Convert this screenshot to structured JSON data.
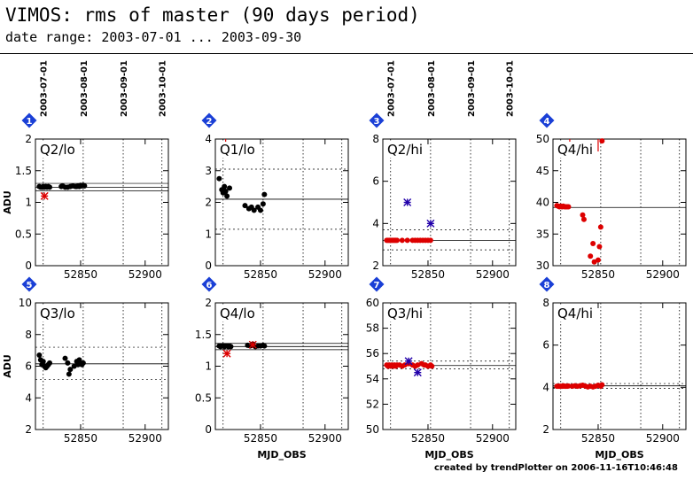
{
  "header": {
    "title": "VIMOS: rms of master (90 days period)",
    "subtitle": "date range: 2003-07-01 ... 2003-09-30"
  },
  "footer": "created by trendPlotter on 2006-11-16T10:46:48",
  "chart_data": {
    "type": "scatter",
    "xlabel": "MJD_OBS",
    "ylabel": "ADU",
    "xlim": [
      52815,
      52918
    ],
    "xticks": [
      52850,
      52900
    ],
    "x_date_ticks": [
      {
        "mjd": 52821,
        "label": "2003-07-01"
      },
      {
        "mjd": 52852,
        "label": "2003-08-01"
      },
      {
        "mjd": 52883,
        "label": "2003-09-01"
      },
      {
        "mjd": 52913,
        "label": "2003-10-01"
      }
    ],
    "colors": {
      "ok": "#000000",
      "bad": "#dd0000",
      "ext": "#2200aa",
      "badge": "#1a3fd6"
    },
    "panels": [
      {
        "badge": "1",
        "label": "Q2/lo",
        "ylim": [
          0,
          2
        ],
        "yticks": [
          0,
          0.5,
          1,
          1.5,
          2
        ],
        "mean": 1.24,
        "limits": [
          1.18,
          1.3
        ],
        "limits_dashed": false,
        "points": [
          [
            52818,
            1.25
          ],
          [
            52819,
            1.24
          ],
          [
            52820,
            1.24
          ],
          [
            52821,
            1.25
          ],
          [
            52822,
            1.24
          ],
          [
            52823,
            1.25
          ],
          [
            52824,
            1.24
          ],
          [
            52825,
            1.25
          ],
          [
            52826,
            1.24
          ],
          [
            52835,
            1.25
          ],
          [
            52836,
            1.26
          ],
          [
            52838,
            1.24
          ],
          [
            52840,
            1.24
          ],
          [
            52842,
            1.25
          ],
          [
            52844,
            1.26
          ],
          [
            52846,
            1.25
          ],
          [
            52847,
            1.25
          ],
          [
            52848,
            1.26
          ],
          [
            52849,
            1.25
          ],
          [
            52850,
            1.27
          ],
          [
            52851,
            1.26
          ],
          [
            52852,
            1.27
          ],
          [
            52853,
            1.26
          ]
        ],
        "star_points": [
          [
            52822,
            1.1
          ]
        ],
        "star_color": "bad",
        "point_color": "ok",
        "marker_lines": []
      },
      {
        "badge": "2",
        "label": "Q1/lo",
        "ylim": [
          0,
          4
        ],
        "yticks": [
          0,
          1,
          2,
          3,
          4
        ],
        "mean": 2.1,
        "limits": [
          1.15,
          3.05
        ],
        "limits_dashed": true,
        "points": [
          [
            52818,
            2.75
          ],
          [
            52820,
            2.4
          ],
          [
            52821,
            2.3
          ],
          [
            52822,
            2.5
          ],
          [
            52823,
            2.35
          ],
          [
            52824,
            2.2
          ],
          [
            52826,
            2.45
          ],
          [
            52838,
            1.9
          ],
          [
            52841,
            1.8
          ],
          [
            52843,
            1.85
          ],
          [
            52845,
            1.75
          ],
          [
            52848,
            1.85
          ],
          [
            52850,
            1.75
          ],
          [
            52852,
            1.95
          ],
          [
            52853,
            2.25
          ]
        ],
        "star_points": [],
        "star_color": "bad",
        "point_color": "ok",
        "marker_lines": [
          52823
        ]
      },
      {
        "badge": "3",
        "label": "Q2/hi",
        "ylim": [
          2,
          8
        ],
        "yticks": [
          2,
          4,
          6,
          8
        ],
        "mean": 3.2,
        "limits": [
          2.75,
          3.7
        ],
        "limits_dashed": true,
        "points": [
          [
            52818,
            3.2
          ],
          [
            52819,
            3.2
          ],
          [
            52820,
            3.2
          ],
          [
            52821,
            3.2
          ],
          [
            52822,
            3.2
          ],
          [
            52823,
            3.2
          ],
          [
            52824,
            3.2
          ],
          [
            52825,
            3.2
          ],
          [
            52826,
            3.2
          ],
          [
            52830,
            3.2
          ],
          [
            52834,
            3.2
          ],
          [
            52838,
            3.2
          ],
          [
            52840,
            3.2
          ],
          [
            52842,
            3.2
          ],
          [
            52844,
            3.2
          ],
          [
            52846,
            3.2
          ],
          [
            52848,
            3.2
          ],
          [
            52850,
            3.2
          ],
          [
            52852,
            3.2
          ]
        ],
        "star_points": [
          [
            52834,
            5.0
          ],
          [
            52852,
            4.0
          ]
        ],
        "star_color": "ext",
        "point_color": "bad",
        "marker_lines": []
      },
      {
        "badge": "4",
        "label": "Q4/hi",
        "ylim": [
          30,
          50
        ],
        "yticks": [
          30,
          35,
          40,
          45,
          50
        ],
        "mean": 39.2,
        "limits": [],
        "limits_dashed": false,
        "points": [
          [
            52818,
            39.5
          ],
          [
            52819,
            39.4
          ],
          [
            52820,
            39.3
          ],
          [
            52821,
            39.4
          ],
          [
            52822,
            39.3
          ],
          [
            52823,
            39.4
          ],
          [
            52824,
            39.3
          ],
          [
            52825,
            39.3
          ],
          [
            52826,
            39.3
          ],
          [
            52827,
            39.3
          ],
          [
            52838,
            38.0
          ],
          [
            52839,
            37.3
          ],
          [
            52844,
            31.5
          ],
          [
            52846,
            33.5
          ],
          [
            52847,
            30.6
          ],
          [
            52850,
            30.9
          ],
          [
            52851,
            33.0
          ],
          [
            52852,
            36.1
          ],
          [
            52853,
            49.7
          ]
        ],
        "star_points": [],
        "star_color": "bad",
        "point_color": "bad",
        "marker_lines": [
          52828,
          52850
        ]
      },
      {
        "badge": "5",
        "label": "Q3/lo",
        "ylim": [
          2,
          10
        ],
        "yticks": [
          2,
          4,
          6,
          8,
          10
        ],
        "mean": 6.15,
        "limits": [
          5.15,
          7.2
        ],
        "limits_dashed": true,
        "points": [
          [
            52818,
            6.7
          ],
          [
            52819,
            6.4
          ],
          [
            52820,
            6.1
          ],
          [
            52821,
            6.3
          ],
          [
            52822,
            6.0
          ],
          [
            52823,
            5.9
          ],
          [
            52824,
            6.0
          ],
          [
            52825,
            6.1
          ],
          [
            52826,
            6.2
          ],
          [
            52838,
            6.5
          ],
          [
            52840,
            6.2
          ],
          [
            52841,
            5.5
          ],
          [
            52842,
            5.8
          ],
          [
            52845,
            6.0
          ],
          [
            52847,
            6.3
          ],
          [
            52848,
            6.1
          ],
          [
            52849,
            6.4
          ],
          [
            52850,
            6.2
          ],
          [
            52851,
            6.1
          ],
          [
            52852,
            6.2
          ]
        ],
        "star_points": [],
        "star_color": "bad",
        "point_color": "ok",
        "marker_lines": []
      },
      {
        "badge": "6",
        "label": "Q4/lo",
        "ylim": [
          0,
          2
        ],
        "yticks": [
          0,
          0.5,
          1,
          1.5,
          2
        ],
        "mean": 1.31,
        "limits": [
          1.26,
          1.36
        ],
        "limits_dashed": false,
        "points": [
          [
            52818,
            1.32
          ],
          [
            52819,
            1.31
          ],
          [
            52820,
            1.32
          ],
          [
            52821,
            1.32
          ],
          [
            52822,
            1.31
          ],
          [
            52823,
            1.32
          ],
          [
            52824,
            1.32
          ],
          [
            52825,
            1.31
          ],
          [
            52826,
            1.32
          ],
          [
            52827,
            1.31
          ],
          [
            52840,
            1.33
          ],
          [
            52842,
            1.32
          ],
          [
            52844,
            1.35
          ],
          [
            52846,
            1.31
          ],
          [
            52848,
            1.32
          ],
          [
            52850,
            1.32
          ],
          [
            52852,
            1.33
          ],
          [
            52853,
            1.32
          ]
        ],
        "star_points": [
          [
            52824,
            1.2
          ],
          [
            52844,
            1.34
          ]
        ],
        "star_color": "bad",
        "point_color": "ok",
        "marker_lines": []
      },
      {
        "badge": "7",
        "label": "Q3/hi",
        "ylim": [
          50,
          60
        ],
        "yticks": [
          50,
          52,
          54,
          56,
          58,
          60
        ],
        "mean": 55.05,
        "limits": [
          54.8,
          55.4
        ],
        "limits_dashed": true,
        "points": [
          [
            52818,
            55.1
          ],
          [
            52819,
            55.0
          ],
          [
            52820,
            55.1
          ],
          [
            52821,
            55.0
          ],
          [
            52822,
            55.1
          ],
          [
            52823,
            55.0
          ],
          [
            52824,
            55.1
          ],
          [
            52825,
            55.0
          ],
          [
            52826,
            55.1
          ],
          [
            52828,
            55.1
          ],
          [
            52830,
            55.0
          ],
          [
            52832,
            55.1
          ],
          [
            52835,
            55.2
          ],
          [
            52838,
            55.1
          ],
          [
            52840,
            55.0
          ],
          [
            52842,
            55.1
          ],
          [
            52845,
            55.2
          ],
          [
            52847,
            55.1
          ],
          [
            52848,
            55.1
          ],
          [
            52850,
            55.0
          ],
          [
            52852,
            55.1
          ],
          [
            52853,
            55.0
          ]
        ],
        "star_points": [
          [
            52835,
            55.4
          ],
          [
            52842,
            54.5
          ]
        ],
        "star_color": "ext",
        "point_color": "bad",
        "marker_lines": []
      },
      {
        "badge": "8",
        "label": "Q4/hi",
        "ylim": [
          2,
          8
        ],
        "yticks": [
          2,
          4,
          6,
          8
        ],
        "mean": 4.07,
        "limits": [
          3.95,
          4.18
        ],
        "limits_dashed": true,
        "points": [
          [
            52818,
            4.05
          ],
          [
            52819,
            4.05
          ],
          [
            52820,
            4.05
          ],
          [
            52821,
            4.05
          ],
          [
            52822,
            4.05
          ],
          [
            52823,
            4.07
          ],
          [
            52824,
            4.05
          ],
          [
            52825,
            4.05
          ],
          [
            52826,
            4.05
          ],
          [
            52827,
            4.06
          ],
          [
            52830,
            4.05
          ],
          [
            52832,
            4.07
          ],
          [
            52834,
            4.05
          ],
          [
            52836,
            4.07
          ],
          [
            52838,
            4.1
          ],
          [
            52840,
            4.06
          ],
          [
            52842,
            4.02
          ],
          [
            52844,
            4.05
          ],
          [
            52846,
            4.02
          ],
          [
            52848,
            4.05
          ],
          [
            52850,
            4.1
          ],
          [
            52852,
            4.05
          ],
          [
            52853,
            4.12
          ]
        ],
        "star_points": [],
        "star_color": "bad",
        "point_color": "bad",
        "marker_lines": []
      }
    ]
  }
}
